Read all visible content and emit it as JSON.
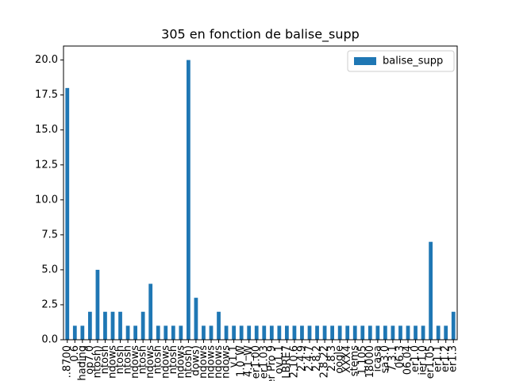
{
  "chart_data": {
    "type": "bar",
    "title": "305 en fonction de balise_supp",
    "categories": [
      "..8700",
      "_0.6",
      "hading",
      "op7.0",
      "ntosh)",
      "ntosh",
      "ndows",
      "ntosh",
      "ntosh",
      "ndows",
      "ntosh",
      "ndows",
      "ntosh",
      "ndows",
      "ntosh",
      "ndows",
      "ntosh)",
      "dows)",
      "ndows",
      "ndows",
      "ndows",
      "ndows",
      "v1.1",
      "1.0_W",
      "4.1_W",
      "er1.00",
      "er1.03",
      "er Pro 9",
      "ov1.1",
      "LBRE7",
      "2.10.6",
      "2.4.9",
      "2.4.7",
      "2.8.2",
      "2.8.22",
      "2.8.3",
      "oogle",
      "XXX4",
      "stems",
      "1.105",
      "18000",
      "icasa",
      "sa3.0",
      "7.3.1",
      "06.3",
      "06.04",
      "er1.0",
      "ier1.0",
      "er1.05",
      "er1.1",
      "er1.2",
      "er1.3"
    ],
    "series": [
      {
        "name": "balise_supp",
        "color": "#1f77b4",
        "values": [
          18,
          1,
          1,
          2,
          5,
          2,
          2,
          2,
          1,
          1,
          2,
          4,
          1,
          1,
          1,
          1,
          20,
          3,
          1,
          1,
          2,
          1,
          1,
          1,
          1,
          1,
          1,
          1,
          1,
          1,
          1,
          1,
          1,
          1,
          1,
          1,
          1,
          1,
          1,
          1,
          1,
          1,
          1,
          1,
          1,
          1,
          1,
          1,
          7,
          1,
          1,
          2
        ]
      }
    ],
    "ylim": [
      0,
      21
    ],
    "yticks": [
      {
        "value": 0,
        "label": "0.0"
      },
      {
        "value": 2.5,
        "label": "2.5"
      },
      {
        "value": 5,
        "label": "5.0"
      },
      {
        "value": 7.5,
        "label": "7.5"
      },
      {
        "value": 10,
        "label": "10.0"
      },
      {
        "value": 12.5,
        "label": "12.5"
      },
      {
        "value": 15,
        "label": "15.0"
      },
      {
        "value": 17.5,
        "label": "17.5"
      },
      {
        "value": 20,
        "label": "20.0"
      }
    ],
    "legend": "upper right"
  }
}
